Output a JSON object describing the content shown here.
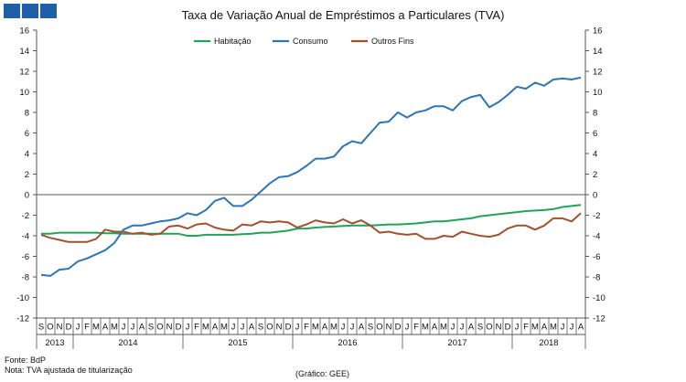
{
  "logo_color": "#1e5fa8",
  "chart_data": {
    "type": "line",
    "title": "Taxa de Variação Anual de Empréstimos a Particulares (TVA)",
    "ylim": [
      -12,
      16
    ],
    "yticks": [
      -12,
      -10,
      -8,
      -6,
      -4,
      -2,
      0,
      2,
      4,
      6,
      8,
      10,
      12,
      14,
      16
    ],
    "grid": false,
    "legend": "top-center",
    "months": [
      "S",
      "O",
      "N",
      "D",
      "J",
      "F",
      "M",
      "A",
      "M",
      "J",
      "J",
      "A",
      "S",
      "O",
      "N",
      "D",
      "J",
      "F",
      "M",
      "A",
      "M",
      "J",
      "J",
      "A",
      "S",
      "O",
      "N",
      "D",
      "J",
      "F",
      "M",
      "A",
      "M",
      "J",
      "J",
      "A",
      "S",
      "O",
      "N",
      "D",
      "J",
      "F",
      "M",
      "A",
      "M",
      "J",
      "J",
      "A",
      "S",
      "O",
      "N",
      "D",
      "J",
      "F",
      "M",
      "A",
      "M",
      "J",
      "J",
      "A"
    ],
    "years": [
      {
        "label": "2013",
        "start": 0,
        "end": 4
      },
      {
        "label": "2014",
        "start": 4,
        "end": 16
      },
      {
        "label": "2015",
        "start": 16,
        "end": 28
      },
      {
        "label": "2016",
        "start": 28,
        "end": 40
      },
      {
        "label": "2017",
        "start": 40,
        "end": 52
      },
      {
        "label": "2018",
        "start": 52,
        "end": 60
      }
    ],
    "series": [
      {
        "name": "Habitação",
        "color": "#21a35a",
        "values": [
          -3.8,
          -3.8,
          -3.7,
          -3.7,
          -3.7,
          -3.7,
          -3.7,
          -3.75,
          -3.75,
          -3.8,
          -3.8,
          -3.8,
          -3.8,
          -3.8,
          -3.8,
          -3.8,
          -4.0,
          -4.0,
          -3.9,
          -3.9,
          -3.9,
          -3.9,
          -3.85,
          -3.8,
          -3.7,
          -3.7,
          -3.6,
          -3.5,
          -3.3,
          -3.3,
          -3.2,
          -3.15,
          -3.1,
          -3.05,
          -3.0,
          -3.0,
          -3.0,
          -2.95,
          -2.9,
          -2.9,
          -2.85,
          -2.8,
          -2.7,
          -2.6,
          -2.6,
          -2.5,
          -2.4,
          -2.3,
          -2.1,
          -2.0,
          -1.9,
          -1.8,
          -1.7,
          -1.6,
          -1.55,
          -1.5,
          -1.4,
          -1.2,
          -1.1,
          -1.0
        ]
      },
      {
        "name": "Consumo",
        "color": "#2e75b6",
        "values": [
          -7.8,
          -7.9,
          -7.3,
          -7.2,
          -6.5,
          -6.2,
          -5.8,
          -5.4,
          -4.7,
          -3.4,
          -3.0,
          -3.0,
          -2.8,
          -2.6,
          -2.5,
          -2.3,
          -1.8,
          -2.0,
          -1.5,
          -0.6,
          -0.3,
          -1.1,
          -1.1,
          -0.5,
          0.3,
          1.1,
          1.7,
          1.8,
          2.2,
          2.8,
          3.5,
          3.5,
          3.7,
          4.7,
          5.2,
          5.0,
          6.0,
          7.0,
          7.1,
          8.0,
          7.5,
          8.0,
          8.2,
          8.6,
          8.6,
          8.2,
          9.1,
          9.5,
          9.7,
          8.5,
          9.0,
          9.7,
          10.5,
          10.3,
          10.9,
          10.6,
          11.2,
          11.3,
          11.2,
          11.4
        ]
      },
      {
        "name": "Outros Fins",
        "color": "#a0522d",
        "values": [
          -3.9,
          -4.2,
          -4.4,
          -4.6,
          -4.6,
          -4.6,
          -4.3,
          -3.4,
          -3.6,
          -3.6,
          -3.8,
          -3.7,
          -3.9,
          -3.8,
          -3.1,
          -3.0,
          -3.3,
          -2.9,
          -2.8,
          -3.2,
          -3.4,
          -3.5,
          -2.9,
          -3.0,
          -2.6,
          -2.7,
          -2.6,
          -2.7,
          -3.2,
          -2.9,
          -2.5,
          -2.7,
          -2.8,
          -2.4,
          -2.8,
          -2.5,
          -3.0,
          -3.7,
          -3.6,
          -3.8,
          -3.9,
          -3.8,
          -4.3,
          -4.3,
          -4.0,
          -4.1,
          -3.6,
          -3.8,
          -4.0,
          -4.1,
          -3.9,
          -3.3,
          -3.0,
          -3.0,
          -3.4,
          -3.0,
          -2.3,
          -2.3,
          -2.6,
          -1.8
        ]
      }
    ]
  },
  "footnotes": {
    "source": "Fonte: BdP",
    "note": "Nota: TVA ajustada de titularização",
    "credit": "(Gráfico: GEE)"
  }
}
